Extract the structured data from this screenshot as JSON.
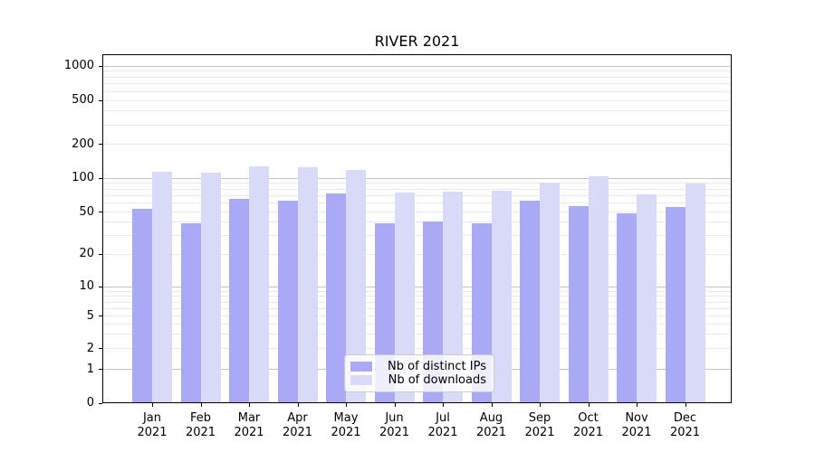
{
  "chart_data": {
    "type": "bar",
    "title": "RIVER 2021",
    "categories": [
      "Jan 2021",
      "Feb 2021",
      "Mar 2021",
      "Apr 2021",
      "May 2021",
      "Jun 2021",
      "Jul 2021",
      "Aug 2021",
      "Sep 2021",
      "Oct 2021",
      "Nov 2021",
      "Dec 2021"
    ],
    "x_tick_months": [
      "Jan",
      "Feb",
      "Mar",
      "Apr",
      "May",
      "Jun",
      "Jul",
      "Aug",
      "Sep",
      "Oct",
      "Nov",
      "Dec"
    ],
    "x_tick_year": "2021",
    "series": [
      {
        "name": "Nb of distinct IPs",
        "color": "#a9a9f5",
        "values": [
          53,
          39,
          65,
          63,
          72,
          39,
          40,
          39,
          62,
          56,
          48,
          55
        ]
      },
      {
        "name": "Nb of downloads",
        "color": "#d9d9f8",
        "values": [
          112,
          111,
          126,
          123,
          118,
          74,
          75,
          77,
          90,
          103,
          71,
          88
        ]
      }
    ],
    "y_ticks": [
      0,
      1,
      2,
      5,
      10,
      20,
      50,
      100,
      200,
      500,
      1000
    ],
    "y_scale": "symlog",
    "ylim": [
      0,
      1200
    ],
    "grid": true,
    "legend_position": "lower center",
    "colors": {
      "major_grid": "#c3c3c3",
      "minor_grid": "#e9e9e9",
      "axis": "#000000"
    }
  }
}
